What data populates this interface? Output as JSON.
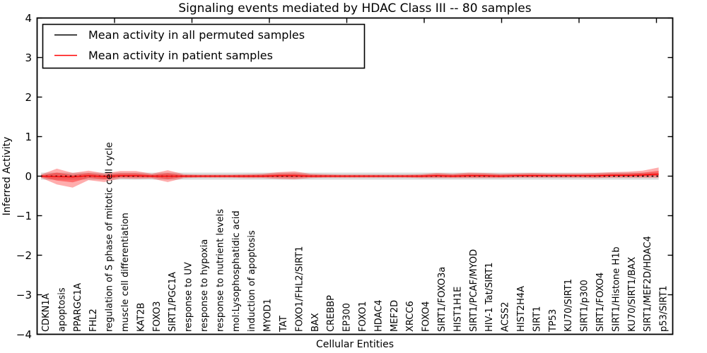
{
  "chart_data": {
    "type": "line",
    "title": "Signaling events mediated by HDAC Class III -- 80 samples",
    "xlabel": "Cellular Entities",
    "ylabel": "Inferred Activity",
    "ylim": [
      -4,
      4
    ],
    "grid": false,
    "legend_position": "upper left",
    "ytick_labels": [
      "4",
      "3",
      "2",
      "1",
      "0",
      "−1",
      "−2",
      "−3",
      "−4"
    ],
    "categories": [
      "CDKN1A",
      "apoptosis",
      "PPARGC1A",
      "FHL2",
      "regulation of S phase of mitotic cell cycle",
      "muscle cell differentiation",
      "KAT2B",
      "FOXO3",
      "SIRT1/PGC1A",
      "response to UV",
      "response to hypoxia",
      "response to nutrient levels",
      "mol:Lysophosphatidic acid",
      "induction of apoptosis",
      "MYOD1",
      "TAT",
      "FOXO1/FHL2/SIRT1",
      "BAX",
      "CREBBP",
      "EP300",
      "FOXO1",
      "HDAC4",
      "MEF2D",
      "XRCC6",
      "FOXO4",
      "SIRT1/FOXO3a",
      "HIST1H1E",
      "SIRT1/PCAF/MYOD",
      "HIV-1 Tat/SIRT1",
      "ACSS2",
      "HIST2H4A",
      "SIRT1",
      "TP53",
      "KU70/SIRT1",
      "SIRT1/p300",
      "SIRT1/FOXO4",
      "SIRT1/Histone H1b",
      "KU70/SIRT1/BAX",
      "SIRT1/MEF2D/HDAC4",
      "p53/SIRT1"
    ],
    "series": [
      {
        "name": "Mean activity in all permuted samples",
        "color": "#000000",
        "style": "dashed",
        "values": [
          0,
          0,
          0,
          0,
          0,
          0,
          0,
          0,
          0,
          0,
          0,
          0,
          0,
          0,
          0,
          0,
          0,
          0,
          0,
          0,
          0,
          0,
          0,
          0,
          0,
          0,
          0,
          0,
          0,
          0,
          0,
          0,
          0,
          0,
          0,
          0,
          0,
          0,
          0,
          0
        ]
      },
      {
        "name": "Mean activity in patient samples",
        "color": "#ff0000",
        "style": "solid",
        "values": [
          0,
          -0.01,
          -0.02,
          0.01,
          -0.01,
          0.01,
          0.01,
          0,
          0,
          0,
          0,
          0,
          0,
          0,
          0,
          0.01,
          0.01,
          0,
          0,
          0,
          0,
          0,
          0,
          0,
          0,
          0.01,
          0,
          0.01,
          0.01,
          0,
          0.01,
          0.01,
          0.01,
          0.01,
          0.01,
          0.01,
          0.02,
          0.02,
          0.03,
          0.05
        ]
      }
    ],
    "bands": [
      {
        "name": "permuted-activity-range",
        "color": "#aaaaaa",
        "opacity": 0.42,
        "upper": [
          0.09,
          0.09,
          0.09,
          0.09,
          0.09,
          0.09,
          0.09,
          0.09,
          0.09,
          0.09,
          0.09,
          0.09,
          0.09,
          0.09,
          0.09,
          0.09,
          0.09,
          0.09,
          0.09,
          0.09,
          0.09,
          0.09,
          0.09,
          0.09,
          0.09,
          0.09,
          0.09,
          0.09,
          0.09,
          0.09,
          0.09,
          0.09,
          0.09,
          0.09,
          0.09,
          0.09,
          0.09,
          0.09,
          0.09,
          0.09
        ],
        "lower": [
          -0.09,
          -0.09,
          -0.09,
          -0.09,
          -0.09,
          -0.09,
          -0.09,
          -0.09,
          -0.09,
          -0.09,
          -0.09,
          -0.09,
          -0.09,
          -0.09,
          -0.09,
          -0.09,
          -0.09,
          -0.09,
          -0.09,
          -0.09,
          -0.09,
          -0.09,
          -0.09,
          -0.09,
          -0.09,
          -0.09,
          -0.09,
          -0.09,
          -0.09,
          -0.09,
          -0.09,
          -0.09,
          -0.09,
          -0.09,
          -0.09,
          -0.09,
          -0.09,
          -0.09,
          -0.09,
          -0.09
        ]
      },
      {
        "name": "patient-activity-range",
        "color": "#ff0000",
        "opacity": 0.32,
        "inner_scale": 0.5,
        "inner_opacity": 0.38,
        "upper": [
          0.04,
          0.19,
          0.08,
          0.14,
          0.07,
          0.13,
          0.13,
          0.06,
          0.15,
          0.05,
          0.04,
          0.04,
          0.04,
          0.05,
          0.06,
          0.1,
          0.12,
          0.06,
          0.05,
          0.04,
          0.04,
          0.04,
          0.04,
          0.04,
          0.05,
          0.08,
          0.06,
          0.09,
          0.08,
          0.06,
          0.07,
          0.08,
          0.07,
          0.07,
          0.07,
          0.08,
          0.1,
          0.11,
          0.14,
          0.22
        ],
        "lower": [
          -0.04,
          -0.21,
          -0.29,
          -0.1,
          -0.15,
          -0.06,
          -0.07,
          -0.06,
          -0.15,
          -0.05,
          -0.04,
          -0.04,
          -0.04,
          -0.05,
          -0.05,
          -0.07,
          -0.08,
          -0.05,
          -0.04,
          -0.04,
          -0.04,
          -0.04,
          -0.04,
          -0.04,
          -0.05,
          -0.05,
          -0.05,
          -0.05,
          -0.05,
          -0.05,
          -0.04,
          -0.04,
          -0.04,
          -0.04,
          -0.04,
          -0.05,
          -0.04,
          -0.04,
          -0.04,
          -0.04
        ]
      }
    ]
  },
  "legend": {
    "items": [
      {
        "label": "Mean activity in all permuted samples",
        "color": "#000000"
      },
      {
        "label": "Mean activity in patient samples",
        "color": "#ff0000"
      }
    ]
  }
}
